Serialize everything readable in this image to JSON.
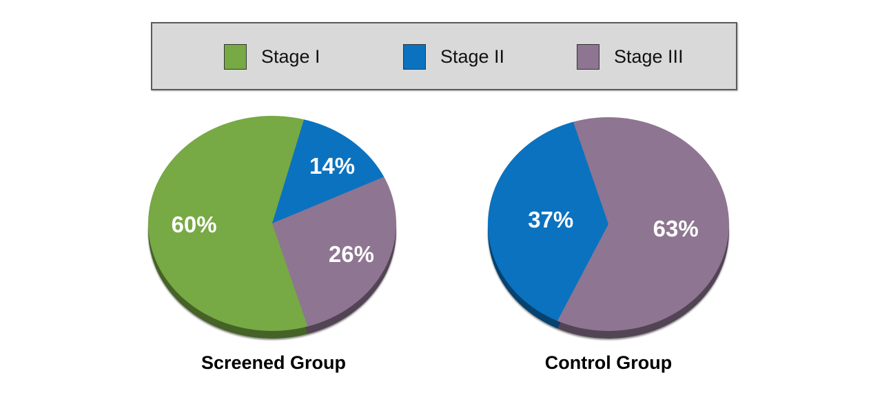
{
  "legend": {
    "background": "#D9D9D9",
    "border_color": "#5A5A5A",
    "items": [
      {
        "label": "Stage I",
        "color": "#77A944",
        "icon": "swatch-green"
      },
      {
        "label": "Stage II",
        "color": "#0B72BF",
        "icon": "swatch-blue"
      },
      {
        "label": "Stage III",
        "color": "#8E7591",
        "icon": "swatch-mauve"
      }
    ]
  },
  "chart_data": [
    {
      "type": "pie",
      "title": "Screened Group",
      "categories": [
        "Stage I",
        "Stage II",
        "Stage III"
      ],
      "values": [
        60,
        14,
        26
      ],
      "data_labels": [
        "60%",
        "14%",
        "26%"
      ],
      "colors": [
        "#77A944",
        "#0B72BF",
        "#8E7591"
      ],
      "layout": {
        "start_angle_deg": 17,
        "draw_order": [
          1,
          2,
          0
        ],
        "label_radius": [
          0.63,
          0.72,
          0.7
        ],
        "effect": "3d",
        "legend_position": "top",
        "label_color": "#FFFFFF"
      }
    },
    {
      "type": "pie",
      "title": "Control Group",
      "categories": [
        "Stage II",
        "Stage III"
      ],
      "values": [
        37,
        63
      ],
      "data_labels": [
        "37%",
        "63%"
      ],
      "colors": [
        "#0B72BF",
        "#8E7591"
      ],
      "layout": {
        "start_angle_deg": -19,
        "draw_order": [
          1,
          0
        ],
        "label_radius": [
          0.48,
          0.56
        ],
        "effect": "3d",
        "legend_position": "top",
        "label_color": "#FFFFFF"
      }
    }
  ]
}
